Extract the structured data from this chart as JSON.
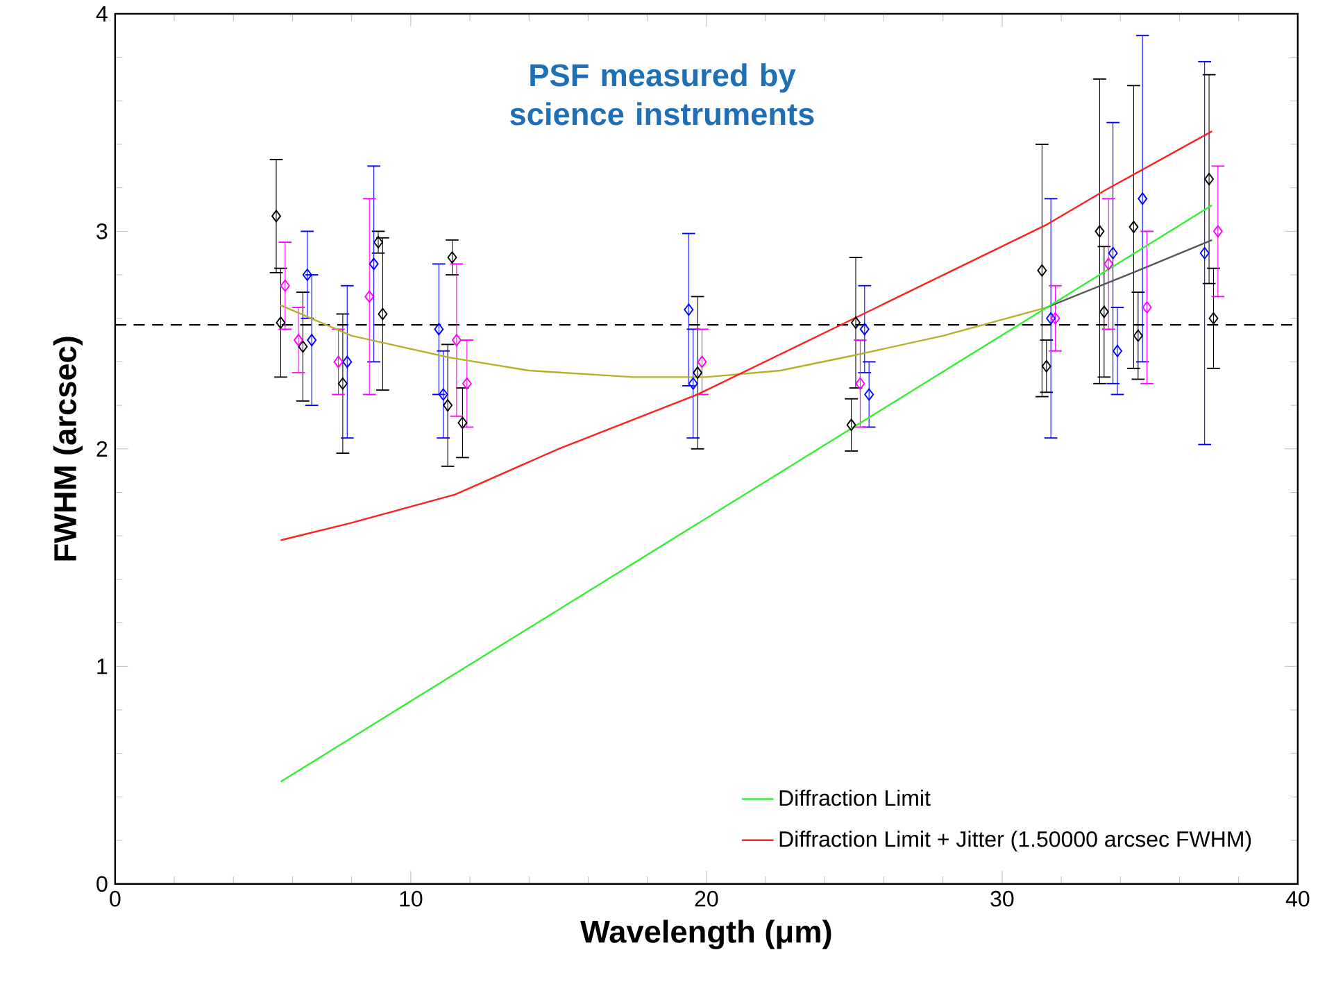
{
  "chart_data": {
    "type": "scatter",
    "title": "PSF measured by science instruments",
    "xlabel": "Wavelength (μm)",
    "ylabel": "FWHM (arcsec)",
    "xlim": [
      0,
      40
    ],
    "ylim": [
      0,
      4
    ],
    "xticks": [
      0,
      10,
      20,
      30,
      40
    ],
    "yticks": [
      0,
      1,
      2,
      3,
      4
    ],
    "legend": "bottom right",
    "series": [
      {
        "color": "#000000",
        "x": [
          5.45,
          5.6,
          6.35,
          7.7,
          8.9,
          9.05,
          11.25,
          11.4,
          11.75,
          19.7,
          24.9,
          25.05,
          31.35,
          31.5,
          33.3,
          33.45,
          34.45,
          34.6,
          37.0,
          37.15
        ],
        "values": [
          3.07,
          2.58,
          2.47,
          2.3,
          2.95,
          2.62,
          2.2,
          2.88,
          2.12,
          2.35,
          2.11,
          2.58,
          2.82,
          2.38,
          3.0,
          2.63,
          3.02,
          2.52,
          3.24,
          2.6
        ],
        "errors": [
          0.26,
          0.25,
          0.25,
          0.32,
          0.05,
          0.35,
          0.28,
          0.08,
          0.16,
          0.35,
          0.12,
          0.3,
          0.58,
          0.12,
          0.7,
          0.3,
          0.65,
          0.2,
          0.48,
          0.23
        ],
        "marker": "diamond"
      },
      {
        "color": "#0000ff",
        "x": [
          6.5,
          6.65,
          7.85,
          8.75,
          10.95,
          11.1,
          19.4,
          19.55,
          25.35,
          25.5,
          31.65,
          33.75,
          33.9,
          34.75,
          36.85
        ],
        "values": [
          2.8,
          2.5,
          2.4,
          2.85,
          2.55,
          2.25,
          2.64,
          2.3,
          2.55,
          2.25,
          2.6,
          2.9,
          2.45,
          3.15,
          2.9
        ],
        "errors": [
          0.2,
          0.3,
          0.35,
          0.45,
          0.3,
          0.2,
          0.35,
          0.25,
          0.2,
          0.15,
          0.55,
          0.6,
          0.2,
          0.75,
          0.88
        ],
        "marker": "diamond"
      },
      {
        "color": "#ff00ff",
        "x": [
          5.75,
          6.2,
          7.55,
          8.6,
          11.55,
          11.9,
          19.85,
          25.2,
          31.8,
          33.6,
          34.9,
          37.3
        ],
        "values": [
          2.75,
          2.5,
          2.4,
          2.7,
          2.5,
          2.3,
          2.4,
          2.3,
          2.6,
          2.85,
          2.65,
          3.0
        ],
        "errors": [
          0.2,
          0.15,
          0.15,
          0.45,
          0.35,
          0.2,
          0.15,
          0.2,
          0.15,
          0.3,
          0.35,
          0.3
        ],
        "marker": "diamond"
      },
      {
        "type": "line",
        "color": "#b5b02a",
        "x": [
          5.6,
          8,
          11.3,
          14,
          17.5,
          20,
          22.5,
          25,
          28,
          31.5
        ],
        "values": [
          2.66,
          2.52,
          2.42,
          2.36,
          2.33,
          2.33,
          2.36,
          2.43,
          2.52,
          2.65
        ]
      },
      {
        "type": "line",
        "color": "#555555",
        "x": [
          31.5,
          34.6,
          37.1
        ],
        "values": [
          2.65,
          2.82,
          2.96
        ]
      },
      {
        "type": "line",
        "name": "Diffraction Limit",
        "color": "#33ee33",
        "x": [
          5.6,
          37.1
        ],
        "values": [
          0.47,
          3.12
        ]
      },
      {
        "type": "line",
        "name": "Diffraction Limit + Jitter (1.50000 arcsec FWHM)",
        "color": "#ff2020",
        "x": [
          5.6,
          8,
          11.5,
          15,
          19.7,
          25,
          31.5,
          33.5,
          37.1
        ],
        "values": [
          1.58,
          1.66,
          1.79,
          2.0,
          2.25,
          2.6,
          3.03,
          3.19,
          3.46
        ]
      }
    ],
    "ref_lines": [
      {
        "axis": "y",
        "value": 2.57,
        "color": "#000000",
        "line_style": "dashed"
      }
    ]
  }
}
